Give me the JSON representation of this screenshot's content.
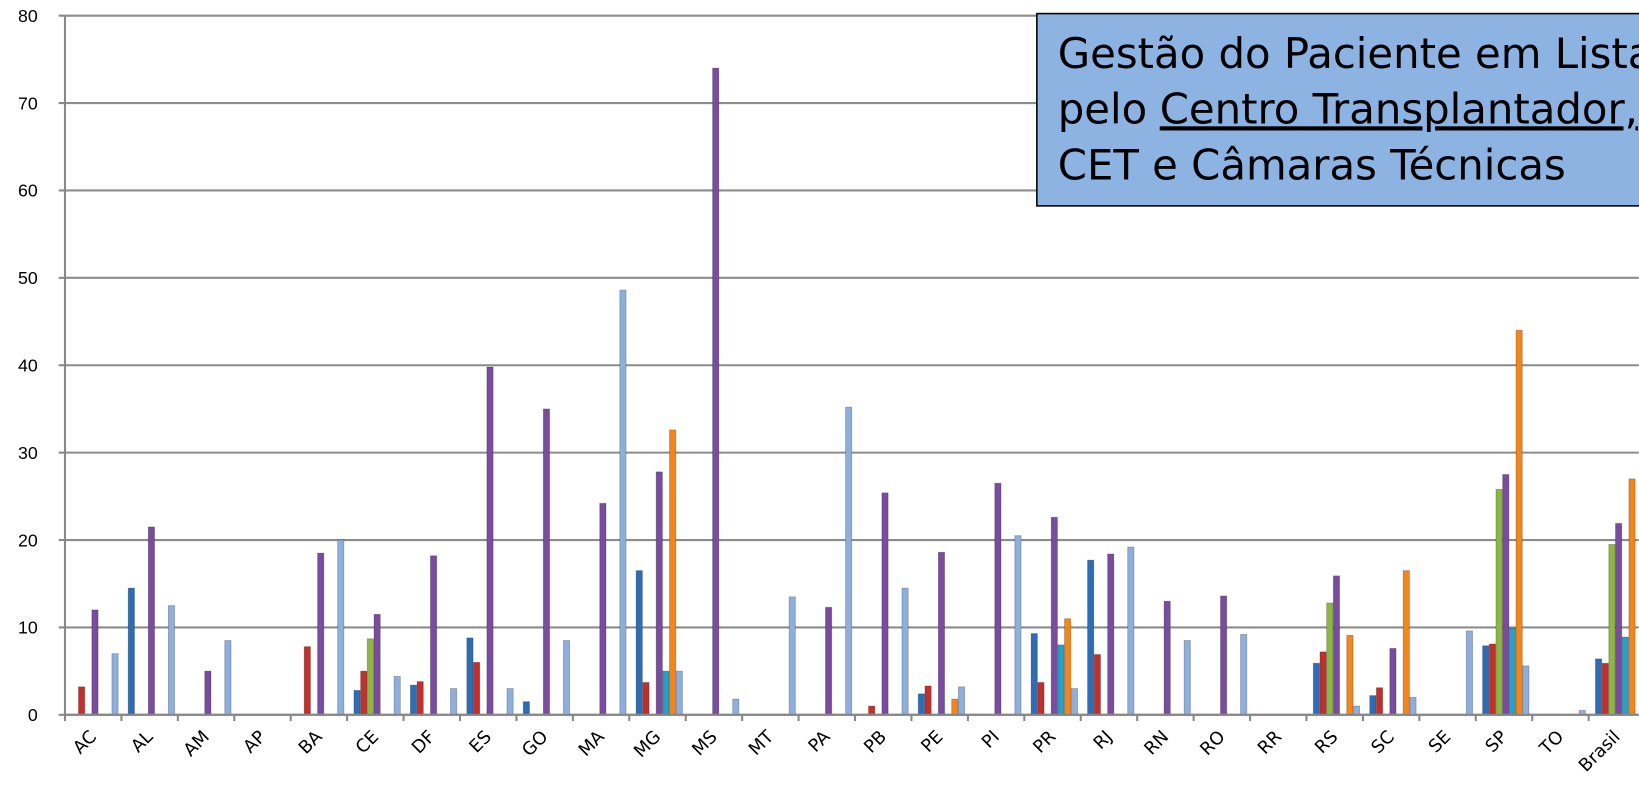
{
  "chart_data": {
    "type": "bar",
    "categories": [
      "AC",
      "AL",
      "AM",
      "AP",
      "BA",
      "CE",
      "DF",
      "ES",
      "GO",
      "MA",
      "MG",
      "MS",
      "MT",
      "PA",
      "PB",
      "PE",
      "PI",
      "PR",
      "RJ",
      "RN",
      "RO",
      "RR",
      "RS",
      "SC",
      "SE",
      "SP",
      "TO",
      "Brasil"
    ],
    "series": [
      {
        "color": "#2e6db4",
        "values": [
          0,
          14.5,
          0,
          0,
          0,
          2.8,
          3.4,
          8.8,
          1.5,
          0,
          16.5,
          0,
          0,
          0,
          0,
          2.4,
          0,
          9.3,
          17.7,
          0,
          0,
          0,
          5.9,
          2.2,
          0,
          7.9,
          0,
          6.4
        ]
      },
      {
        "color": "#c0302c",
        "values": [
          3.2,
          0,
          0,
          0,
          7.8,
          5,
          3.8,
          6,
          0,
          0,
          3.7,
          0,
          0,
          0,
          1,
          3.3,
          0,
          3.7,
          6.9,
          0,
          0,
          0,
          7.2,
          3.1,
          0,
          8.1,
          0,
          5.9
        ]
      },
      {
        "color": "#8db645",
        "values": [
          0,
          0,
          0,
          0,
          0,
          8.7,
          0,
          0,
          0,
          0,
          0,
          0,
          0,
          0,
          0,
          0,
          0,
          0,
          0,
          0,
          0,
          0,
          12.8,
          0,
          0,
          25.8,
          0,
          19.5
        ]
      },
      {
        "color": "#7a4c9e",
        "values": [
          12,
          21.5,
          5,
          0,
          18.5,
          11.5,
          18.2,
          39.8,
          35,
          24.2,
          27.8,
          74,
          0,
          12.3,
          25.4,
          18.6,
          26.5,
          22.6,
          18.4,
          13,
          13.6,
          0,
          15.9,
          7.6,
          0,
          27.5,
          0,
          21.9
        ]
      },
      {
        "color": "#2a9fc2",
        "values": [
          0,
          0,
          0,
          0,
          0,
          0,
          0,
          0,
          0,
          0,
          5,
          0,
          0,
          0,
          0,
          0,
          0,
          8,
          0,
          0,
          0,
          0,
          0,
          0,
          0,
          9.9,
          0,
          8.9
        ]
      },
      {
        "color": "#f2861d",
        "values": [
          0,
          0,
          0,
          0,
          0,
          0,
          0,
          0,
          0,
          0,
          32.6,
          0,
          0,
          0,
          0,
          1.8,
          0,
          11,
          0,
          0,
          0,
          0,
          9.1,
          16.5,
          0,
          44,
          0,
          27
        ]
      },
      {
        "color": "#8eaedc",
        "values": [
          7,
          12.5,
          8.5,
          0,
          20,
          4.4,
          3,
          3,
          8.5,
          48.6,
          5,
          1.8,
          13.5,
          35.2,
          14.5,
          3.2,
          20.5,
          3,
          19.2,
          8.5,
          9.2,
          0,
          1,
          2,
          9.6,
          5.6,
          0.5,
          null
        ]
      }
    ],
    "ylim": [
      0,
      80
    ],
    "yticks": [
      0,
      10,
      20,
      30,
      40,
      50,
      60,
      70,
      80
    ],
    "grid": true,
    "annotation": {
      "lines": [
        "Gestão do Paciente em Lista",
        [
          "pelo",
          "Centro Transplantador,"
        ],
        "CET e Câmaras Técnicas"
      ]
    }
  }
}
